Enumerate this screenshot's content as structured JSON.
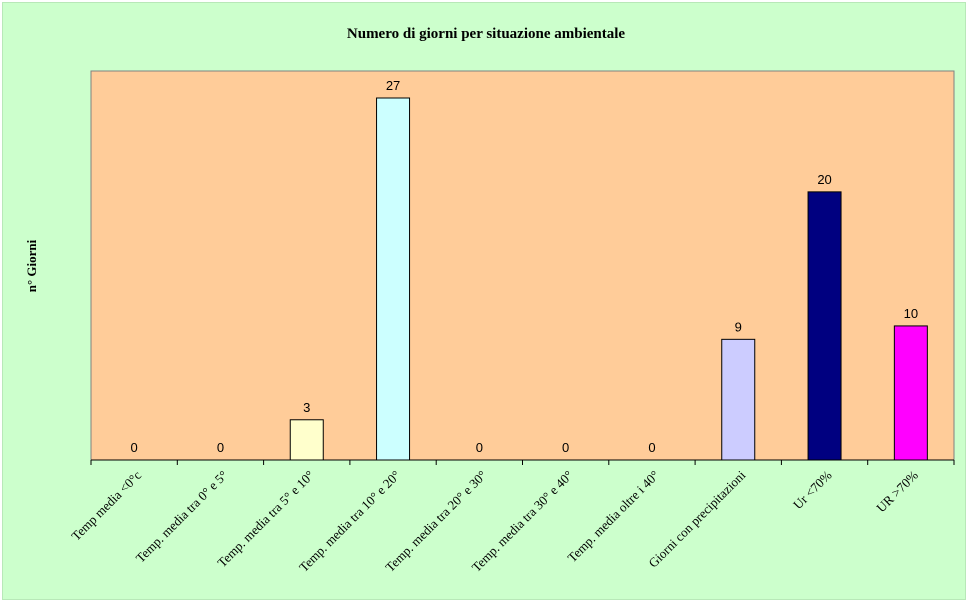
{
  "chart_data": {
    "type": "bar",
    "title": "Numero di giorni per situazione ambientale",
    "ylabel": "n° Giorni",
    "xlabel": "",
    "ylim": [
      0,
      27
    ],
    "grid": false,
    "legend": "none",
    "plot_background": "#ffcc99",
    "chart_background": "#ccffcc",
    "categories": [
      "Temp media <0°c",
      "Temp. media tra 0° e 5°",
      "Temp. media tra 5° e 10°",
      "Temp. media tra 10° e 20°",
      "Temp. media tra 20° e 30°",
      "Temp. media tra 30° e 40°",
      "Temp. media oltre i 40°",
      "Giorni con precipitazioni",
      "Ur <70%",
      "UR >70%"
    ],
    "values": [
      0,
      0,
      3,
      27,
      0,
      0,
      0,
      9,
      20,
      10
    ],
    "colors": [
      "#ffffcc",
      "#ffffcc",
      "#ffffcc",
      "#ccffff",
      "#ccffff",
      "#ccffff",
      "#ccffff",
      "#ccccff",
      "#000080",
      "#ff00ff"
    ]
  }
}
